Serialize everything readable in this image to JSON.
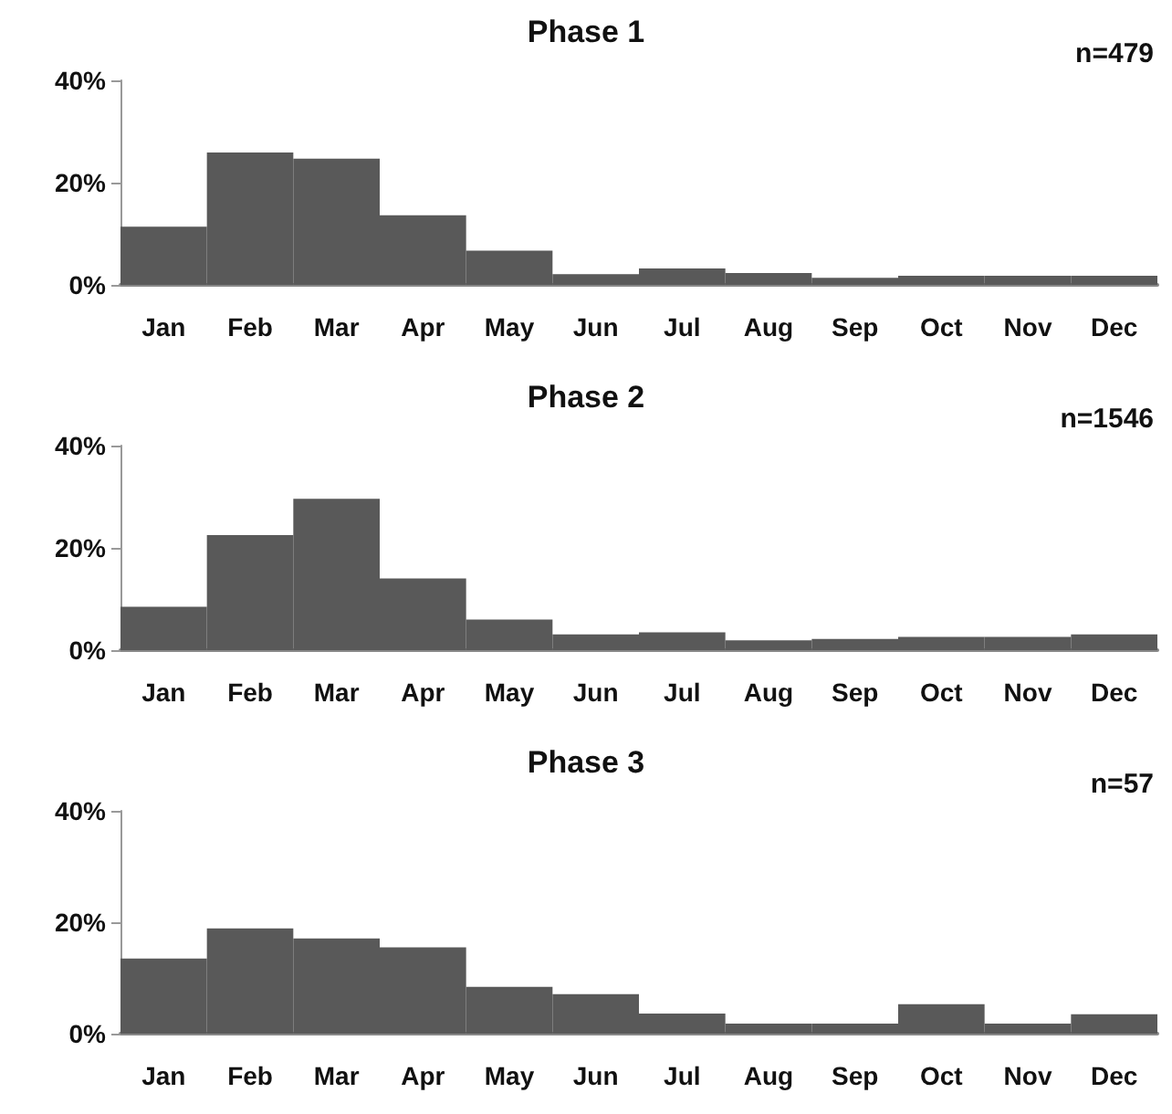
{
  "chart_data": [
    {
      "type": "bar",
      "title": "Phase 1",
      "categories": [
        "Jan",
        "Feb",
        "Mar",
        "Apr",
        "May",
        "Jun",
        "Jul",
        "Aug",
        "Sep",
        "Oct",
        "Nov",
        "Dec"
      ],
      "values": [
        11.4,
        25.9,
        24.7,
        13.6,
        6.7,
        2.1,
        3.2,
        2.3,
        1.4,
        1.8,
        1.8,
        1.8
      ],
      "color": "#595959",
      "ylim": [
        0,
        40
      ],
      "yticks": [
        {
          "value": 0,
          "label": "0%"
        },
        {
          "value": 20,
          "label": "20%"
        },
        {
          "value": 40,
          "label": "40%"
        }
      ],
      "grid": false,
      "annotations": [
        "n=479"
      ]
    },
    {
      "type": "bar",
      "title": "Phase 2",
      "categories": [
        "Jan",
        "Feb",
        "Mar",
        "Apr",
        "May",
        "Jun",
        "Jul",
        "Aug",
        "Sep",
        "Oct",
        "Nov",
        "Dec"
      ],
      "values": [
        8.5,
        22.5,
        29.6,
        14.0,
        6.0,
        3.1,
        3.5,
        1.9,
        2.2,
        2.6,
        2.6,
        3.1
      ],
      "color": "#595959",
      "ylim": [
        0,
        40
      ],
      "yticks": [
        {
          "value": 0,
          "label": "0%"
        },
        {
          "value": 20,
          "label": "20%"
        },
        {
          "value": 40,
          "label": "40%"
        }
      ],
      "grid": false,
      "annotations": [
        "n=1546"
      ]
    },
    {
      "type": "bar",
      "title": "Phase 3",
      "categories": [
        "Jan",
        "Feb",
        "Mar",
        "Apr",
        "May",
        "Jun",
        "Jul",
        "Aug",
        "Sep",
        "Oct",
        "Nov",
        "Dec"
      ],
      "values": [
        13.5,
        18.9,
        17.1,
        15.5,
        8.4,
        7.1,
        3.6,
        1.8,
        1.8,
        5.3,
        1.8,
        3.5
      ],
      "color": "#595959",
      "ylim": [
        0,
        40
      ],
      "yticks": [
        {
          "value": 0,
          "label": "0%"
        },
        {
          "value": 20,
          "label": "20%"
        },
        {
          "value": 40,
          "label": "40%"
        }
      ],
      "grid": false,
      "annotations": [
        "n=57"
      ]
    }
  ]
}
